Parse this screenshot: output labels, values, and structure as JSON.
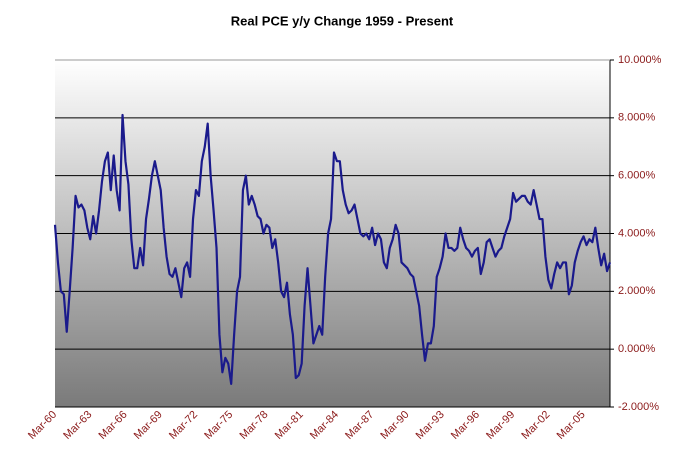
{
  "chart_data": {
    "type": "line",
    "title": "Real PCE y/y Change 1959 - Present",
    "categories": [
      "Mar-60",
      null,
      null,
      null,
      null,
      null,
      null,
      null,
      null,
      null,
      null,
      null,
      "Mar-63",
      null,
      null,
      null,
      null,
      null,
      null,
      null,
      null,
      null,
      null,
      null,
      "Mar-66",
      null,
      null,
      null,
      null,
      null,
      null,
      null,
      null,
      null,
      null,
      null,
      "Mar-69",
      null,
      null,
      null,
      null,
      null,
      null,
      null,
      null,
      null,
      null,
      null,
      "Mar-72",
      null,
      null,
      null,
      null,
      null,
      null,
      null,
      null,
      null,
      null,
      null,
      "Mar-75",
      null,
      null,
      null,
      null,
      null,
      null,
      null,
      null,
      null,
      null,
      null,
      "Mar-78",
      null,
      null,
      null,
      null,
      null,
      null,
      null,
      null,
      null,
      null,
      null,
      "Mar-81",
      null,
      null,
      null,
      null,
      null,
      null,
      null,
      null,
      null,
      null,
      null,
      "Mar-84",
      null,
      null,
      null,
      null,
      null,
      null,
      null,
      null,
      null,
      null,
      null,
      "Mar-87",
      null,
      null,
      null,
      null,
      null,
      null,
      null,
      null,
      null,
      null,
      null,
      "Mar-90",
      null,
      null,
      null,
      null,
      null,
      null,
      null,
      null,
      null,
      null,
      null,
      "Mar-93",
      null,
      null,
      null,
      null,
      null,
      null,
      null,
      null,
      null,
      null,
      null,
      "Mar-96",
      null,
      null,
      null,
      null,
      null,
      null,
      null,
      null,
      null,
      null,
      null,
      "Mar-99",
      null,
      null,
      null,
      null,
      null,
      null,
      null,
      null,
      null,
      null,
      null,
      "Mar-02",
      null,
      null,
      null,
      null,
      null,
      null,
      null,
      null,
      null,
      null,
      null,
      "Mar-05",
      null,
      null,
      null,
      null,
      null,
      null,
      null,
      null,
      null
    ],
    "series": [
      {
        "name": "Real PCE y/y",
        "color": "#1a1a8c",
        "values": [
          4.3,
          3,
          2,
          1.9,
          0.6,
          2,
          3.5,
          5.3,
          4.9,
          5,
          4.8,
          4.2,
          3.8,
          4.6,
          4,
          4.8,
          5.8,
          6.5,
          6.8,
          5.5,
          6.7,
          5.5,
          4.8,
          8.1,
          6.5,
          5.7,
          3.8,
          2.8,
          2.8,
          3.5,
          2.9,
          4.5,
          5.2,
          6,
          6.5,
          6,
          5.5,
          4.2,
          3.2,
          2.6,
          2.5,
          2.8,
          2.3,
          1.8,
          2.8,
          3,
          2.5,
          4.5,
          5.5,
          5.3,
          6.5,
          7,
          7.8,
          6,
          4.8,
          3.5,
          0.5,
          -0.8,
          -0.3,
          -0.5,
          -1.2,
          0.5,
          2,
          2.5,
          5.5,
          6,
          5,
          5.3,
          5,
          4.6,
          4.5,
          4,
          4.3,
          4.2,
          3.5,
          3.8,
          3,
          2,
          1.8,
          2.3,
          1.2,
          0.5,
          -1,
          -0.9,
          -0.5,
          1.5,
          2.8,
          1.5,
          0.2,
          0.5,
          0.8,
          0.5,
          2.5,
          4,
          4.5,
          6.8,
          6.5,
          6.5,
          5.5,
          5,
          4.7,
          4.8,
          5,
          4.5,
          4,
          3.9,
          4,
          3.8,
          4.2,
          3.6,
          4,
          3.8,
          3,
          2.8,
          3.5,
          3.8,
          4.3,
          4,
          3,
          2.9,
          2.8,
          2.6,
          2.5,
          2,
          1.5,
          0.5,
          -0.4,
          0.2,
          0.2,
          0.8,
          2.5,
          2.8,
          3.2,
          4,
          3.5,
          3.5,
          3.4,
          3.5,
          4.2,
          3.8,
          3.5,
          3.4,
          3.2,
          3.4,
          3.5,
          2.6,
          3,
          3.7,
          3.8,
          3.5,
          3.2,
          3.4,
          3.5,
          3.9,
          4.2,
          4.5,
          5.4,
          5.1,
          5.2,
          5.3,
          5.3,
          5.1,
          5,
          5.5,
          5,
          4.5,
          4.5,
          3.2,
          2.4,
          2.1,
          2.6,
          3,
          2.8,
          3,
          3,
          1.9,
          2.2,
          3,
          3.4,
          3.7,
          3.9,
          3.6,
          3.8,
          3.7,
          4.2,
          3.5,
          2.9,
          3.3,
          2.7,
          3
        ]
      }
    ],
    "ylim": [
      -2,
      10
    ],
    "yticks": [
      {
        "value": -2,
        "label": "-2.000%"
      },
      {
        "value": 0,
        "label": "0.000%"
      },
      {
        "value": 2,
        "label": "2.000%"
      },
      {
        "value": 4,
        "label": "4.000%"
      },
      {
        "value": 6,
        "label": "6.000%"
      },
      {
        "value": 8,
        "label": "8.000%"
      },
      {
        "value": 10,
        "label": "10.000%"
      }
    ],
    "grid": true
  }
}
